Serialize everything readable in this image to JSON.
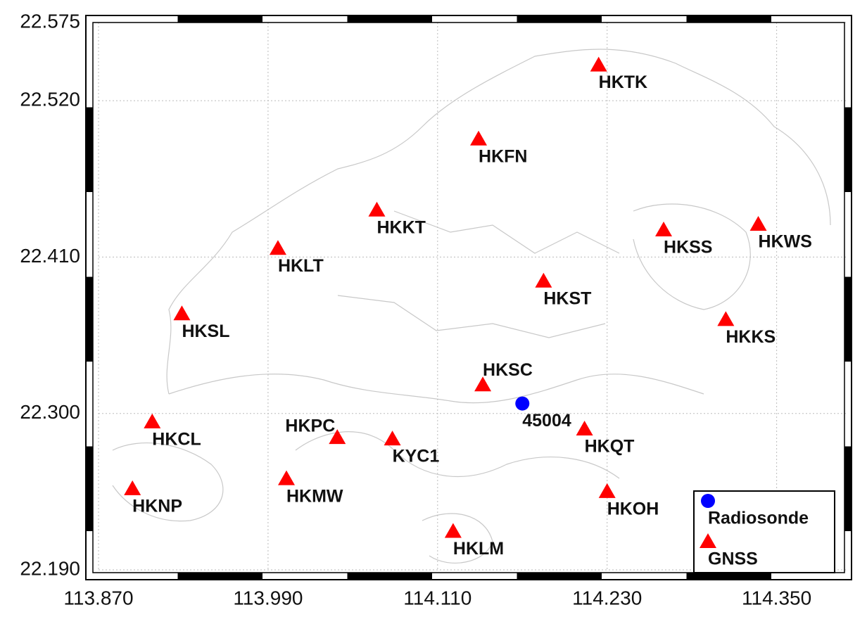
{
  "chart_data": {
    "type": "scatter",
    "xlim": [
      113.87,
      114.4
    ],
    "ylim": [
      22.19,
      22.575
    ],
    "xticks": [
      {
        "value": 113.87,
        "label": "113.870"
      },
      {
        "value": 113.99,
        "label": "113.990"
      },
      {
        "value": 114.11,
        "label": "114.110"
      },
      {
        "value": 114.23,
        "label": "114.230"
      },
      {
        "value": 114.35,
        "label": "114.350"
      }
    ],
    "yticks": [
      {
        "value": 22.19,
        "label": "22.190"
      },
      {
        "value": 22.3,
        "label": "22.300"
      },
      {
        "value": 22.41,
        "label": "22.410"
      },
      {
        "value": 22.52,
        "label": "22.520"
      },
      {
        "value": 22.575,
        "label": "22.575"
      }
    ],
    "grid": true,
    "legend": "lower right",
    "series": [
      {
        "name": "GNSS",
        "color": "#ff0000",
        "marker": "triangle",
        "labels": [
          "HKTK",
          "HKFN",
          "HKKT",
          "HKLT",
          "HKSS",
          "HKWS",
          "HKST",
          "HKSL",
          "HKKS",
          "HKSC",
          "HKCL",
          "HKPC",
          "KYC1",
          "HKQT",
          "HKNP",
          "HKMW",
          "HKOH",
          "HKLM"
        ],
        "x": [
          114.224,
          114.139,
          114.067,
          113.997,
          114.27,
          114.337,
          114.185,
          113.929,
          114.314,
          114.142,
          113.908,
          114.039,
          114.078,
          114.214,
          113.894,
          114.003,
          114.23,
          114.121
        ],
        "y": [
          22.545,
          22.493,
          22.443,
          22.416,
          22.429,
          22.433,
          22.393,
          22.37,
          22.366,
          22.32,
          22.294,
          22.283,
          22.282,
          22.289,
          22.247,
          22.254,
          22.245,
          22.217
        ]
      },
      {
        "name": "Radiosonde",
        "color": "#0000ff",
        "marker": "circle",
        "labels": [
          "45004"
        ],
        "x": [
          114.17
        ],
        "y": [
          22.307
        ]
      }
    ]
  }
}
